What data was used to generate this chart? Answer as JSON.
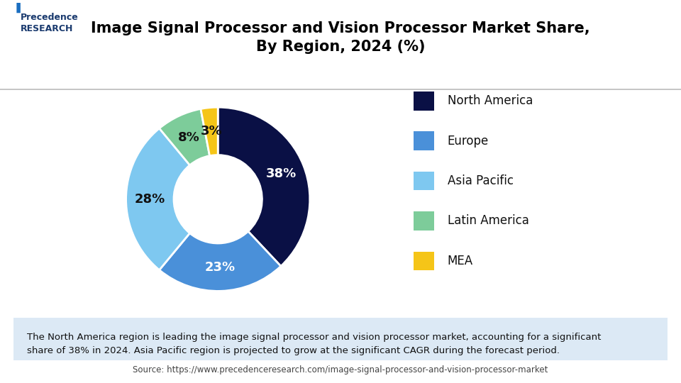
{
  "title": "Image Signal Processor and Vision Processor Market Share,\nBy Region, 2024 (%)",
  "segments": [
    "North America",
    "Europe",
    "Asia Pacific",
    "Latin America",
    "MEA"
  ],
  "values": [
    38,
    23,
    28,
    8,
    3
  ],
  "colors": [
    "#0a1045",
    "#4a90d9",
    "#7ec8f0",
    "#7dcc9a",
    "#f5c518"
  ],
  "labels": [
    "38%",
    "23%",
    "28%",
    "8%",
    "3%"
  ],
  "legend_labels": [
    "North America",
    "Europe",
    "Asia Pacific",
    "Latin America",
    "MEA"
  ],
  "footnote": "The North America region is leading the image signal processor and vision processor market, accounting for a significant\nshare of 38% in 2024. Asia Pacific region is projected to grow at the significant CAGR during the forecast period.",
  "source": "Source: https://www.precedenceresearch.com/image-signal-processor-and-vision-processor-market",
  "bg_color": "#ffffff",
  "footnote_bg": "#dce9f5",
  "title_color": "#000000",
  "label_color_dark": "#ffffff",
  "label_color_light": "#000000",
  "startangle": 90
}
